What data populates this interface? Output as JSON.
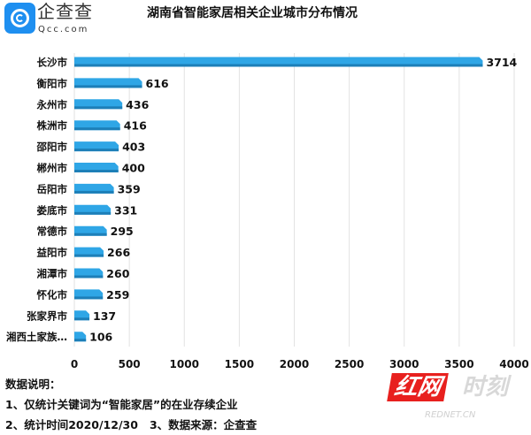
{
  "logo": {
    "cn": "企查查",
    "en": "Qcc.com"
  },
  "watermark": {
    "cn": "红网时刻",
    "en": "REDNET.CN"
  },
  "notes": {
    "heading": "数据说明：",
    "line1": "1、仅统计关键词为“智能家居”的在业存续企业",
    "line2": "2、统计时间2020/12/30   3、数据来源：企查查"
  },
  "chart_data": {
    "type": "bar",
    "orientation": "horizontal",
    "title": "湖南省智能家居相关企业城市分布情况",
    "categories": [
      "长沙市",
      "衡阳市",
      "永州市",
      "株洲市",
      "邵阳市",
      "郴州市",
      "岳阳市",
      "娄底市",
      "常德市",
      "益阳市",
      "湘潭市",
      "怀化市",
      "张家界市",
      "湘西土家族…"
    ],
    "values": [
      3714,
      616,
      436,
      416,
      403,
      400,
      359,
      331,
      295,
      266,
      260,
      259,
      137,
      106
    ],
    "xlim": [
      0,
      4000
    ],
    "xticks": [
      0,
      500,
      1000,
      1500,
      2000,
      2500,
      3000,
      3500,
      4000
    ],
    "grid": true,
    "bar_color": "#2fa6e6",
    "data_labels": true
  }
}
